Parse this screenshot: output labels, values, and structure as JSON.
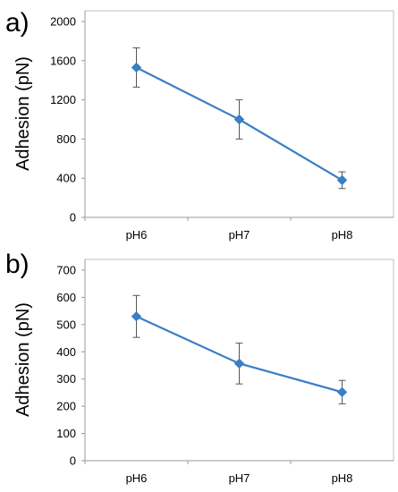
{
  "chart_data": [
    {
      "type": "line",
      "panel_label": "a)",
      "ylabel": "Adhesion (pN)",
      "xlabel": "",
      "categories": [
        "pH6",
        "pH7",
        "pH8"
      ],
      "yticks": [
        "0",
        "400",
        "800",
        "1200",
        "1600",
        "2000"
      ],
      "ylim": [
        0,
        2000
      ],
      "series": [
        {
          "values": [
            1530,
            1000,
            380
          ],
          "errors": [
            200,
            200,
            85
          ],
          "color": "#3a7fc4"
        }
      ],
      "grid": false
    },
    {
      "type": "line",
      "panel_label": "b)",
      "ylabel": "Adhesion (pN)",
      "xlabel": "",
      "categories": [
        "pH6",
        "pH7",
        "pH8"
      ],
      "yticks": [
        "0",
        "100",
        "200",
        "300",
        "400",
        "500",
        "600",
        "700"
      ],
      "ylim": [
        0,
        700
      ],
      "series": [
        {
          "values": [
            530,
            357,
            252
          ],
          "errors": [
            77,
            75,
            43
          ],
          "color": "#3a7fc4"
        }
      ],
      "grid": false
    }
  ]
}
